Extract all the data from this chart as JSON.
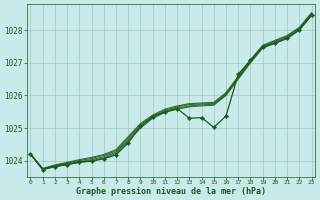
{
  "title": "Graphe pression niveau de la mer (hPa)",
  "bg_color": "#c8eaea",
  "grid_color": "#a0c8c8",
  "line_color": "#1a5c1a",
  "hours": [
    0,
    1,
    2,
    3,
    4,
    5,
    6,
    7,
    8,
    9,
    10,
    11,
    12,
    13,
    14,
    15,
    16,
    17,
    18,
    19,
    20,
    21,
    22,
    23
  ],
  "smooth1": [
    1024.2,
    1023.75,
    1023.82,
    1023.88,
    1023.94,
    1024.0,
    1024.08,
    1024.22,
    1024.6,
    1025.0,
    1025.3,
    1025.48,
    1025.58,
    1025.65,
    1025.68,
    1025.7,
    1026.0,
    1026.5,
    1027.0,
    1027.45,
    1027.6,
    1027.75,
    1028.0,
    1028.45
  ],
  "smooth2": [
    1024.2,
    1023.75,
    1023.83,
    1023.9,
    1023.97,
    1024.03,
    1024.12,
    1024.26,
    1024.65,
    1025.05,
    1025.33,
    1025.51,
    1025.61,
    1025.68,
    1025.71,
    1025.73,
    1026.03,
    1026.53,
    1027.03,
    1027.48,
    1027.63,
    1027.78,
    1028.03,
    1028.48
  ],
  "smooth3": [
    1024.2,
    1023.75,
    1023.85,
    1023.93,
    1024.0,
    1024.07,
    1024.16,
    1024.3,
    1024.7,
    1025.1,
    1025.37,
    1025.55,
    1025.65,
    1025.72,
    1025.74,
    1025.76,
    1026.06,
    1026.56,
    1027.06,
    1027.51,
    1027.66,
    1027.81,
    1028.06,
    1028.51
  ],
  "smooth4": [
    1024.2,
    1023.76,
    1023.87,
    1023.95,
    1024.03,
    1024.1,
    1024.19,
    1024.34,
    1024.74,
    1025.14,
    1025.4,
    1025.58,
    1025.68,
    1025.75,
    1025.77,
    1025.79,
    1026.09,
    1026.59,
    1027.09,
    1027.54,
    1027.69,
    1027.84,
    1028.09,
    1028.54
  ],
  "jagged": [
    1024.2,
    1023.72,
    1023.82,
    1023.88,
    1023.96,
    1023.98,
    1024.06,
    1024.18,
    1024.55,
    1025.05,
    1025.35,
    1025.5,
    1025.6,
    1025.3,
    1025.32,
    1025.02,
    1025.37,
    1026.65,
    1027.08,
    1027.5,
    1027.6,
    1027.75,
    1028.02,
    1028.47
  ],
  "ylim": [
    1023.5,
    1028.8
  ],
  "yticks": [
    1024,
    1025,
    1026,
    1027,
    1028
  ],
  "xlim": [
    -0.3,
    23.3
  ]
}
